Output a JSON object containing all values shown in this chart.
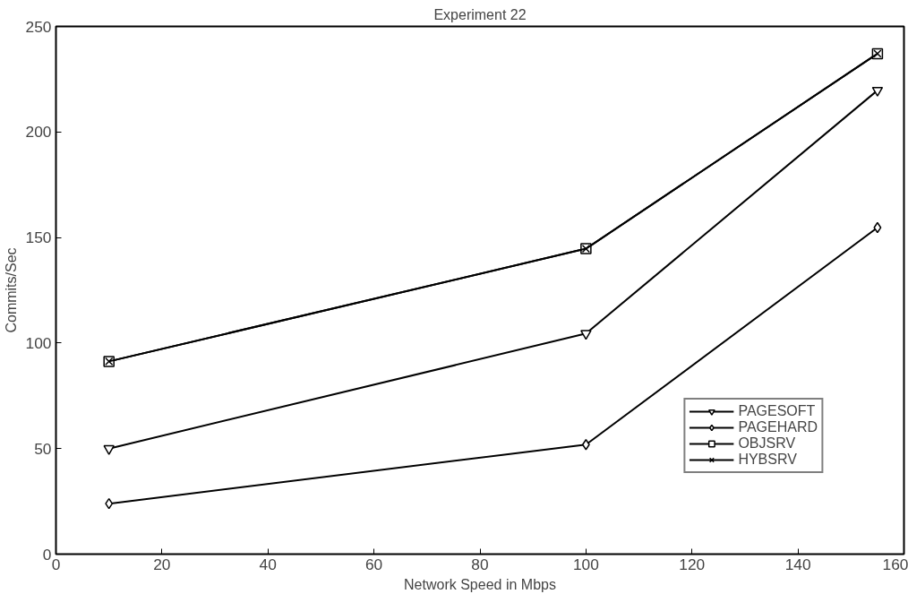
{
  "chart_data": {
    "type": "line",
    "title": "Experiment 22",
    "xlabel": "Network Speed in Mbps",
    "ylabel": "Commits/Sec",
    "x": [
      10,
      100,
      155
    ],
    "series": [
      {
        "name": "PAGESOFT",
        "color": "#000000",
        "marker": "triangle",
        "values": [
          50,
          104.5,
          219.7
        ]
      },
      {
        "name": "PAGEHARD",
        "color": "#000000",
        "marker": "diamond",
        "values": [
          23.9,
          51.9,
          154.7
        ]
      },
      {
        "name": "OBJSRV",
        "color": "#000000",
        "marker": "square",
        "values": [
          91.3,
          144.7,
          237.1
        ]
      },
      {
        "name": "HYBSRV",
        "color": "#000000",
        "marker": "cross",
        "values": [
          91.3,
          144.7,
          237.1
        ]
      }
    ],
    "xlim": [
      0,
      160
    ],
    "xticks": [
      0,
      20,
      40,
      60,
      80,
      100,
      120,
      140,
      160
    ],
    "ylim": [
      0,
      250
    ],
    "yticks": [
      0,
      50,
      100,
      150,
      200,
      250
    ],
    "grid": false,
    "legend": "bottom right",
    "line_style": "solid"
  }
}
